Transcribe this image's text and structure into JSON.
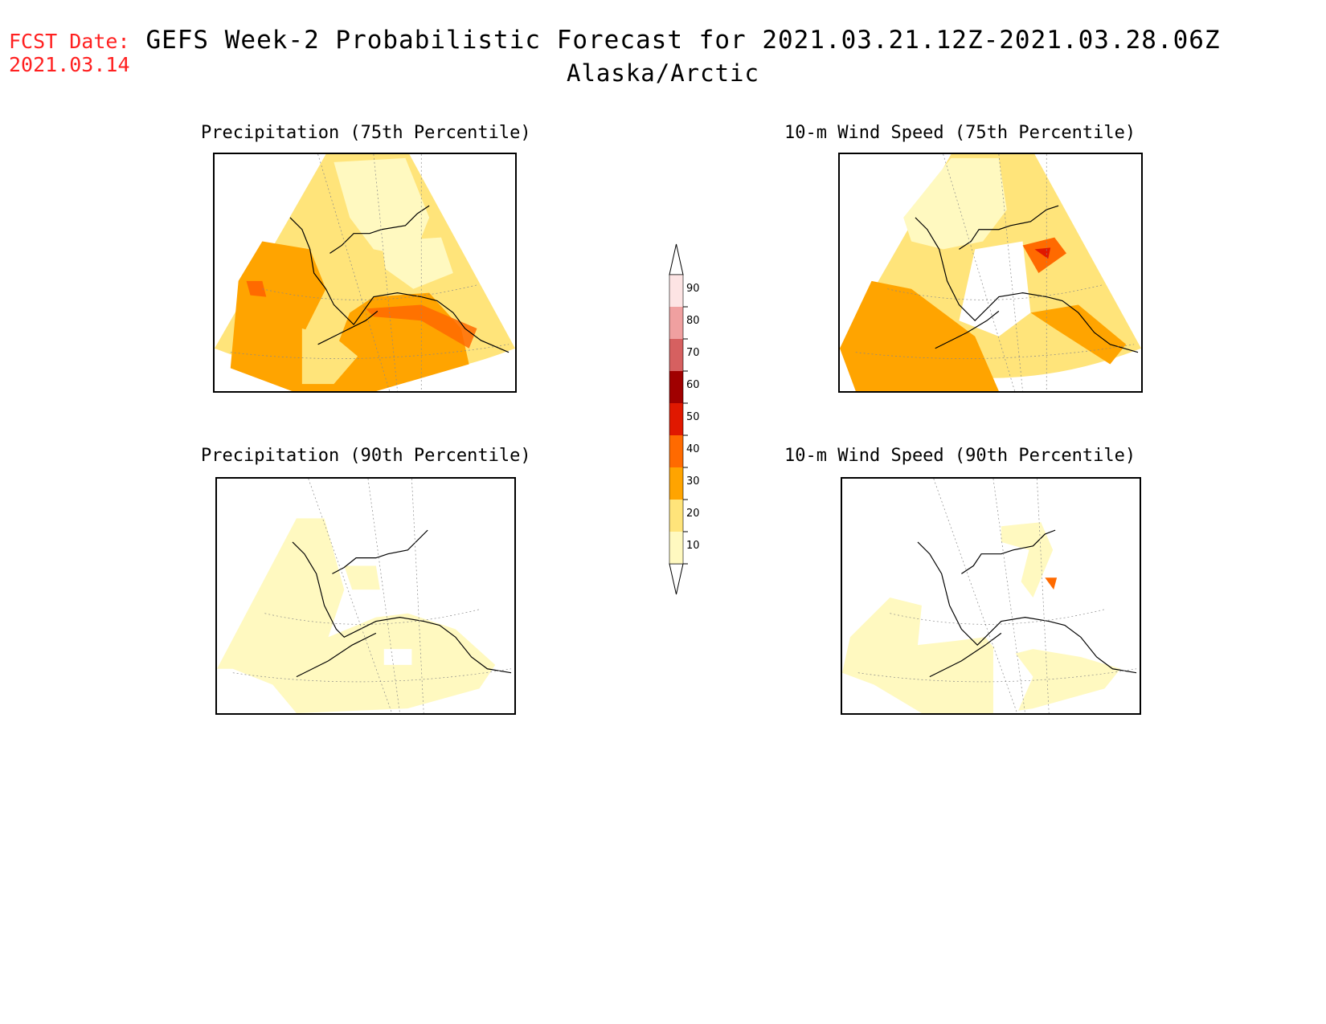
{
  "header": {
    "fcst_label": "FCST Date:",
    "fcst_date": "2021.03.14",
    "title": "GEFS Week-2 Probabilistic Forecast for 2021.03.21.12Z-2021.03.28.06Z",
    "region": "Alaska/Arctic"
  },
  "panels": [
    {
      "id": "precip-75",
      "title": "Precipitation (75th Percentile)"
    },
    {
      "id": "wind-75",
      "title": "10-m Wind Speed (75th Percentile)"
    },
    {
      "id": "precip-90",
      "title": "Precipitation (90th Percentile)"
    },
    {
      "id": "wind-90",
      "title": "10-m Wind Speed (90th Percentile)"
    }
  ],
  "colorbar": {
    "levels": [
      {
        "label": "10",
        "color": "#fff9c0"
      },
      {
        "label": "20",
        "color": "#ffe47a"
      },
      {
        "label": "30",
        "color": "#ffa400"
      },
      {
        "label": "40",
        "color": "#ff6a00"
      },
      {
        "label": "50",
        "color": "#e01800"
      },
      {
        "label": "60",
        "color": "#a00000"
      },
      {
        "label": "70",
        "color": "#d66060"
      },
      {
        "label": "80",
        "color": "#f0a0a0"
      },
      {
        "label": "90",
        "color": "#fde4e4"
      }
    ]
  }
}
